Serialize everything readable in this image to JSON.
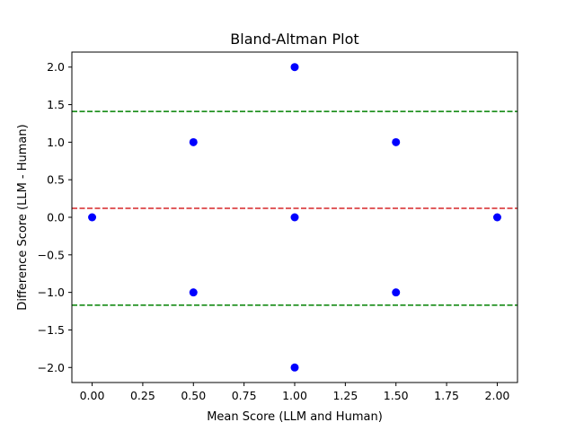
{
  "chart_data": {
    "type": "scatter",
    "title": "Bland-Altman Plot",
    "xlabel": "Mean Score (LLM and Human)",
    "ylabel": "Difference Score (LLM - Human)",
    "xlim": [
      -0.1,
      2.1
    ],
    "ylim": [
      -2.2,
      2.2
    ],
    "xticks": [
      0.0,
      0.25,
      0.5,
      0.75,
      1.0,
      1.25,
      1.5,
      1.75,
      2.0
    ],
    "xtick_labels": [
      "0.00",
      "0.25",
      "0.50",
      "0.75",
      "1.00",
      "1.25",
      "1.50",
      "1.75",
      "2.00"
    ],
    "yticks": [
      -2.0,
      -1.5,
      -1.0,
      -0.5,
      0.0,
      0.5,
      1.0,
      1.5,
      2.0
    ],
    "ytick_labels": [
      "−2.0",
      "−1.5",
      "−1.0",
      "−0.5",
      "0.0",
      "0.5",
      "1.0",
      "1.5",
      "2.0"
    ],
    "grid": false,
    "legend": "none",
    "points": [
      {
        "x": 0.0,
        "y": 0.0
      },
      {
        "x": 0.5,
        "y": 1.0
      },
      {
        "x": 0.5,
        "y": -1.0
      },
      {
        "x": 1.0,
        "y": 2.0
      },
      {
        "x": 1.0,
        "y": 0.0
      },
      {
        "x": 1.0,
        "y": -2.0
      },
      {
        "x": 1.5,
        "y": 1.0
      },
      {
        "x": 1.5,
        "y": -1.0
      },
      {
        "x": 2.0,
        "y": 0.0
      }
    ],
    "reference_lines": [
      {
        "name": "mean-difference-line",
        "y": 0.12,
        "color": "#d62728"
      },
      {
        "name": "upper-limit-line",
        "y": 1.41,
        "color": "#008000"
      },
      {
        "name": "lower-limit-line",
        "y": -1.17,
        "color": "#008000"
      }
    ],
    "point_color": "#0000ff"
  }
}
